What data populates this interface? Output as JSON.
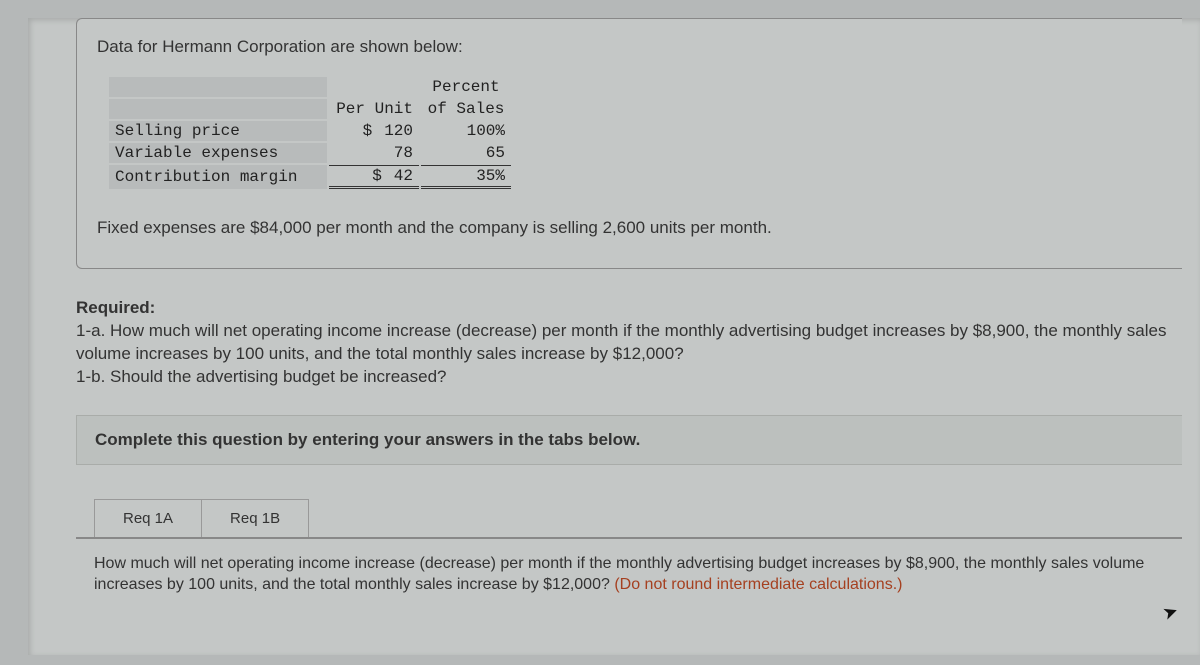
{
  "intro": "Data for Hermann Corporation are shown below:",
  "table": {
    "headers": {
      "per_unit": "Per Unit",
      "pct_top": "Percent",
      "pct_bot": "of Sales"
    },
    "rows": [
      {
        "label": "Selling price",
        "dollar": "$",
        "amount": "120",
        "pct": "100%"
      },
      {
        "label": "Variable expenses",
        "dollar": "",
        "amount": "78",
        "pct": "65"
      },
      {
        "label": "Contribution margin",
        "dollar": "$",
        "amount": "42",
        "pct": "35%"
      }
    ]
  },
  "fixed_line": "Fixed expenses are $84,000 per month and the company is selling 2,600 units per month.",
  "required": {
    "heading": "Required:",
    "q1a": "1-a. How much will net operating income increase (decrease) per month if the monthly advertising budget increases by $8,900, the monthly sales volume increases by 100 units, and the total monthly sales increase by $12,000?",
    "q1b": "1-b. Should the advertising budget be increased?"
  },
  "instruction": "Complete this question by entering your answers in the tabs below.",
  "tabs": {
    "a": "Req 1A",
    "b": "Req 1B"
  },
  "panel": {
    "text": "How much will net operating income increase (decrease) per month if the monthly advertising budget increases by $8,900, the monthly sales volume increases by 100 units, and the total monthly sales increase by $12,000? ",
    "note": "(Do not round intermediate calculations.)"
  }
}
